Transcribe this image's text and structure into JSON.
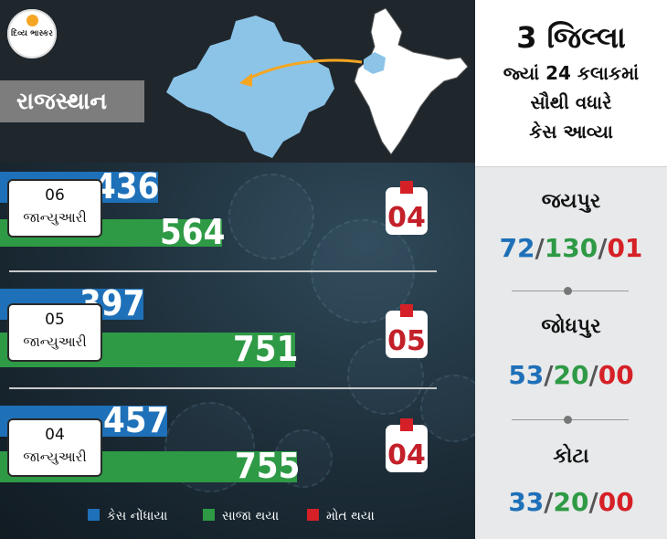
{
  "logo": {
    "text": "દિવ્ય ભાસ્કર"
  },
  "state": {
    "name": "રાજસ્થાન"
  },
  "right_header": {
    "line1": "3 જિલ્લા",
    "line2": "જ્યાં 24 કલાકમાં",
    "line3": "સૌથી વધારે",
    "line4": "કેસ આવ્યા"
  },
  "days": [
    {
      "date_num": "06",
      "month": "જાન્યુઆરી",
      "cases": "436",
      "recovered": "564",
      "deaths": "04",
      "cases_value": 436,
      "recovered_value": 564
    },
    {
      "date_num": "05",
      "month": "જાન્યુઆરી",
      "cases": "397",
      "recovered": "751",
      "deaths": "05",
      "cases_value": 397,
      "recovered_value": 751
    },
    {
      "date_num": "04",
      "month": "જાન્યુઆરી",
      "cases": "457",
      "recovered": "755",
      "deaths": "04",
      "cases_value": 457,
      "recovered_value": 755
    }
  ],
  "districts": [
    {
      "name": "જયપુર",
      "cases": "72",
      "recovered": "130",
      "deaths": "01"
    },
    {
      "name": "જોધપુર",
      "cases": "53",
      "recovered": "20",
      "deaths": "00"
    },
    {
      "name": "કોટા",
      "cases": "33",
      "recovered": "20",
      "deaths": "00"
    }
  ],
  "legend": {
    "cases": "કેસ નોંધાયા",
    "recovered": "સાજા થયા",
    "deaths": "મોત થયા"
  },
  "colors": {
    "cases": "#1e70b8",
    "recovered": "#2e9a45",
    "deaths": "#d62027"
  }
}
